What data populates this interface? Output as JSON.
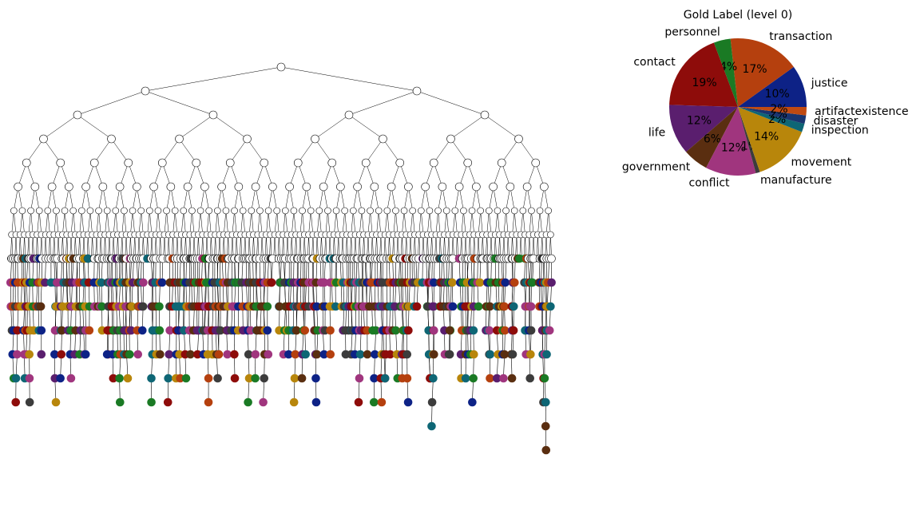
{
  "chart_data": {
    "type": "pie",
    "title": "Gold Label (level 0)",
    "categories": [
      "justice",
      "transaction",
      "personnel",
      "contact",
      "life",
      "government",
      "conflict",
      "manufacture",
      "movement",
      "inspection",
      "disaster",
      "artifactexistence"
    ],
    "values": [
      10,
      17,
      4,
      19,
      12,
      6,
      12,
      1,
      14,
      2,
      2,
      2
    ],
    "value_labels": [
      "10%",
      "17%",
      "4%",
      "19%",
      "12%",
      "6%",
      "12%",
      "1%",
      "14%",
      "2%",
      "2%",
      "2%"
    ],
    "colors": [
      "#0d2286",
      "#b5400e",
      "#1a7a24",
      "#8e0c0a",
      "#5a1e6e",
      "#5a2e10",
      "#a0357e",
      "#3c3c3c",
      "#b8860b",
      "#0e6675",
      "#1a3570",
      "#c04a12"
    ]
  }
}
